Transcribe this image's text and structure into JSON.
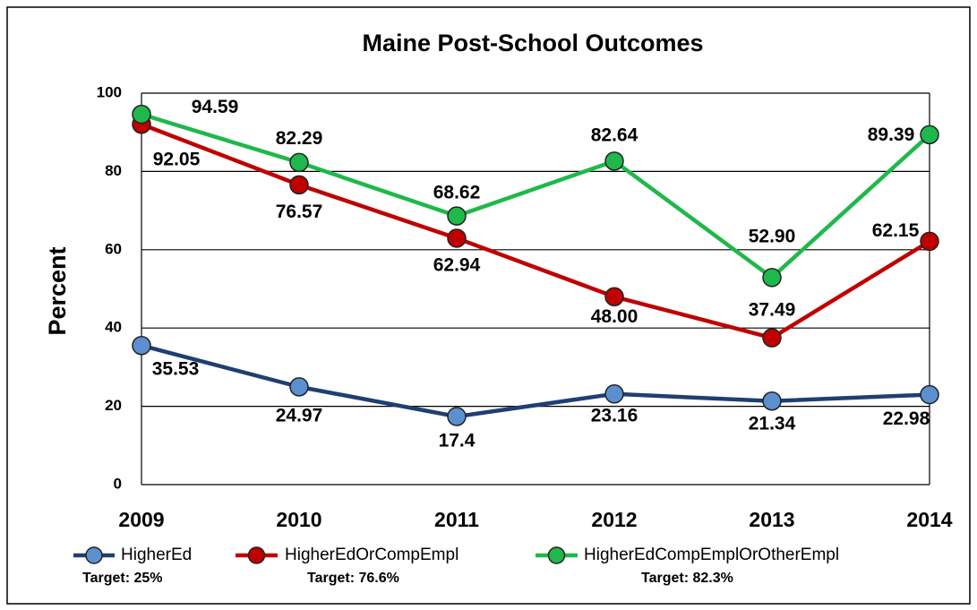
{
  "chart_data": {
    "type": "line",
    "title": "Maine Post-School Outcomes",
    "y_label": "Percent",
    "categories": [
      "2009",
      "2010",
      "2011",
      "2012",
      "2013",
      "2014"
    ],
    "ylim": [
      0,
      100
    ],
    "yticks": [
      0,
      20,
      40,
      60,
      80,
      100
    ],
    "grid": true,
    "legend": "bottom",
    "series": [
      {
        "name": "HigherEd",
        "color": "#1f3f73",
        "marker_color": "#5b8fd0",
        "target_label": "Target: 25%",
        "values": [
          35.53,
          24.97,
          17.4,
          23.16,
          21.34,
          22.98
        ],
        "value_labels": [
          "35.53",
          "24.97",
          "17.4",
          "23.16",
          "21.34",
          "22.98"
        ]
      },
      {
        "name": "HigherEdOrCompEmpl",
        "color": "#c00000",
        "marker_color": "#c00000",
        "target_label": "Target: 76.6%",
        "values": [
          92.05,
          76.57,
          62.94,
          48.0,
          37.49,
          62.15
        ],
        "value_labels": [
          "92.05",
          "76.57",
          "62.94",
          "48.00",
          "37.49",
          "62.15"
        ]
      },
      {
        "name": "HigherEdCompEmplOrOtherEmpl",
        "color": "#1fb84a",
        "marker_color": "#1fb84a",
        "target_label": "Target: 82.3%",
        "values": [
          94.59,
          82.29,
          68.62,
          82.64,
          52.9,
          89.39
        ],
        "value_labels": [
          "94.59",
          "82.29",
          "68.62",
          "82.64",
          "52.90",
          "89.39"
        ]
      }
    ]
  }
}
